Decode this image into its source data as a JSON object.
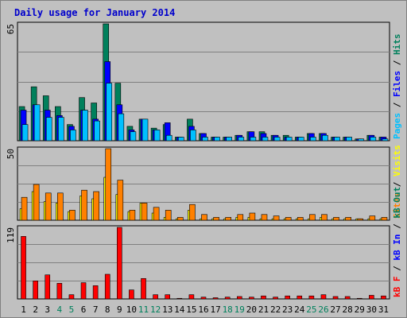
{
  "chart_data": {
    "type": "bar",
    "title": "Daily usage for January 2014",
    "colors": {
      "background": "#c0c0c0",
      "hits": "#00805c",
      "files": "#0000ff",
      "pages": "#00c0ff",
      "visits": "#ffff00",
      "sites": "#ff8000",
      "kb_in": "#0000ff",
      "kb_out": "#00805c",
      "kb_f": "#ff0000",
      "weekend_label": "#00805c",
      "weekday_label": "#000000",
      "separator": "#000000"
    },
    "categories": [
      "1",
      "2",
      "3",
      "4",
      "5",
      "6",
      "7",
      "8",
      "9",
      "10",
      "11",
      "12",
      "13",
      "14",
      "15",
      "16",
      "17",
      "18",
      "19",
      "20",
      "21",
      "22",
      "23",
      "24",
      "25",
      "26",
      "27",
      "28",
      "29",
      "30",
      "31"
    ],
    "weekend_days": [
      "4",
      "5",
      "11",
      "12",
      "18",
      "19",
      "25",
      "26"
    ],
    "panels": [
      {
        "ymax_label": "65",
        "ylim": [
          0,
          65
        ],
        "right_label": [
          {
            "text": "Pages",
            "color": "#00c0ff"
          },
          {
            "text": " / ",
            "color": "#000000"
          },
          {
            "text": "Files",
            "color": "#0000ff"
          },
          {
            "text": " / ",
            "color": "#000000"
          },
          {
            "text": "Hits",
            "color": "#00805c"
          }
        ],
        "series": [
          {
            "name": "Hits",
            "color": "#00805c",
            "values": [
              19,
              30,
              25,
              19,
              9,
              24,
              21,
              65,
              32,
              8,
              12,
              7,
              9,
              2,
              12,
              4,
              2,
              2,
              3,
              5,
              5,
              3,
              3,
              2,
              4,
              4,
              2,
              2,
              1,
              3,
              2
            ]
          },
          {
            "name": "Files",
            "color": "#0000ff",
            "values": [
              17,
              20,
              17,
              14,
              8,
              17,
              12,
              44,
              20,
              6,
              12,
              6,
              10,
              2,
              8,
              4,
              2,
              2,
              3,
              5,
              4,
              3,
              2,
              2,
              4,
              4,
              2,
              2,
              1,
              3,
              2
            ]
          },
          {
            "name": "Pages",
            "color": "#00c0ff",
            "values": [
              9,
              20,
              13,
              13,
              6,
              17,
              11,
              32,
              15,
              5,
              12,
              6,
              3,
              2,
              6,
              2,
              2,
              2,
              2,
              2,
              2,
              2,
              2,
              2,
              2,
              3,
              2,
              2,
              1,
              2,
              1
            ]
          }
        ]
      },
      {
        "ymax_label": "50",
        "ylim": [
          0,
          50
        ],
        "right_label": [
          {
            "text": "Sites",
            "color": "#ff8000"
          },
          {
            "text": " / ",
            "color": "#000000"
          },
          {
            "text": "Visits",
            "color": "#ffff00"
          }
        ],
        "series": [
          {
            "name": "Visits",
            "color": "#ffff00",
            "values": [
              8,
              20,
              13,
              12,
              6,
              17,
              15,
              30,
              18,
              6,
              12,
              5,
              2,
              1,
              7,
              1,
              1,
              1,
              2,
              2,
              1,
              1,
              1,
              1,
              1,
              2,
              1,
              1,
              1,
              1,
              1
            ]
          },
          {
            "name": "Sites",
            "color": "#ff8000",
            "values": [
              16,
              25,
              19,
              19,
              7,
              21,
              20,
              50,
              28,
              7,
              12,
              9,
              7,
              2,
              11,
              4,
              2,
              2,
              4,
              5,
              4,
              3,
              2,
              2,
              4,
              4,
              2,
              2,
              1,
              3,
              2
            ]
          }
        ]
      },
      {
        "ymax_label": "119",
        "ylim": [
          0,
          119
        ],
        "right_label": [
          {
            "text": "kB F",
            "color": "#ff0000"
          },
          {
            "text": " / ",
            "color": "#000000"
          },
          {
            "text": "kB In",
            "color": "#0000ff"
          },
          {
            "text": " / ",
            "color": "#000000"
          },
          {
            "text": "kB Out",
            "color": "#00805c"
          }
        ],
        "series": [
          {
            "name": "kB F",
            "color": "#ff0000",
            "values": [
              104,
              30,
              40,
              26,
              7,
              27,
              22,
              41,
              119,
              15,
              34,
              7,
              7,
              1,
              7,
              3,
              2,
              3,
              4,
              3,
              5,
              3,
              5,
              5,
              5,
              7,
              4,
              4,
              1,
              6,
              5
            ]
          }
        ]
      }
    ]
  }
}
